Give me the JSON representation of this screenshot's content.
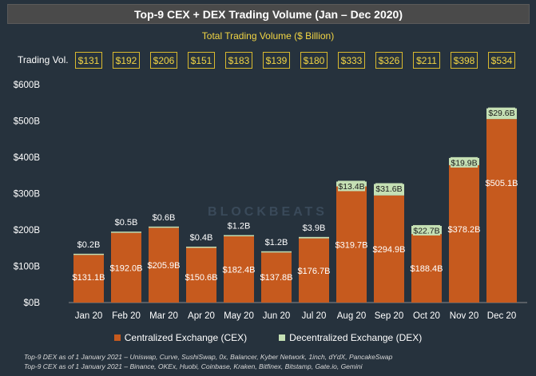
{
  "chart_data": {
    "type": "bar",
    "title": "Top-9 CEX + DEX Trading Volume (Jan – Dec 2020)",
    "subtitle": "Total Trading Volume ($ Billion)",
    "total_label": "Trading Vol.",
    "categories": [
      "Jan 20",
      "Feb 20",
      "Mar 20",
      "Apr 20",
      "May 20",
      "Jun 20",
      "Jul 20",
      "Aug 20",
      "Sep 20",
      "Oct 20",
      "Nov 20",
      "Dec 20"
    ],
    "totals": [
      "$131",
      "$192",
      "$206",
      "$151",
      "$183",
      "$139",
      "$180",
      "$333",
      "$326",
      "$211",
      "$398",
      "$534"
    ],
    "series": [
      {
        "name": "Centralized Exchange (CEX)",
        "color": "#c65a1e",
        "values": [
          131.1,
          192.0,
          205.9,
          150.6,
          182.4,
          137.8,
          176.7,
          319.7,
          294.9,
          188.4,
          378.2,
          505.1
        ],
        "labels": [
          "$131.1B",
          "$192.0B",
          "$205.9B",
          "$150.6B",
          "$182.4B",
          "$137.8B",
          "$176.7B",
          "$319.7B",
          "$294.9B",
          "$188.4B",
          "$378.2B",
          "$505.1B"
        ]
      },
      {
        "name": "Decentralized Exchange (DEX)",
        "color": "#c5e0b4",
        "values": [
          0.2,
          0.5,
          0.6,
          0.4,
          1.2,
          1.2,
          3.9,
          13.4,
          31.6,
          22.7,
          19.9,
          29.6
        ],
        "labels": [
          "$0.2B",
          "$0.5B",
          "$0.6B",
          "$0.4B",
          "$1.2B",
          "$1.2B",
          "$3.9B",
          "$13.4B",
          "$31.6B",
          "$22.7B",
          "$19.9B",
          "$29.6B"
        ]
      }
    ],
    "y_ticks": [
      0,
      100,
      200,
      300,
      400,
      500,
      600
    ],
    "y_tick_labels": [
      "$0B",
      "$100B",
      "$200B",
      "$300B",
      "$400B",
      "$500B",
      "$600B"
    ],
    "ylim": [
      0,
      600
    ],
    "legend_position": "bottom",
    "watermark": "BLOCKBEATS"
  },
  "notes": [
    "Top-9 DEX as of 1 January 2021 – Uniswap, Curve, SushiSwap, 0x, Balancer, Kyber Network, 1inch, dYdX, PancakeSwap",
    "Top-9 CEX as of 1 January 2021 – Binance, OKEx, Huobi, Coinbase, Kraken, Bitfinex, Bitstamp, Gate.io, Gemini"
  ]
}
